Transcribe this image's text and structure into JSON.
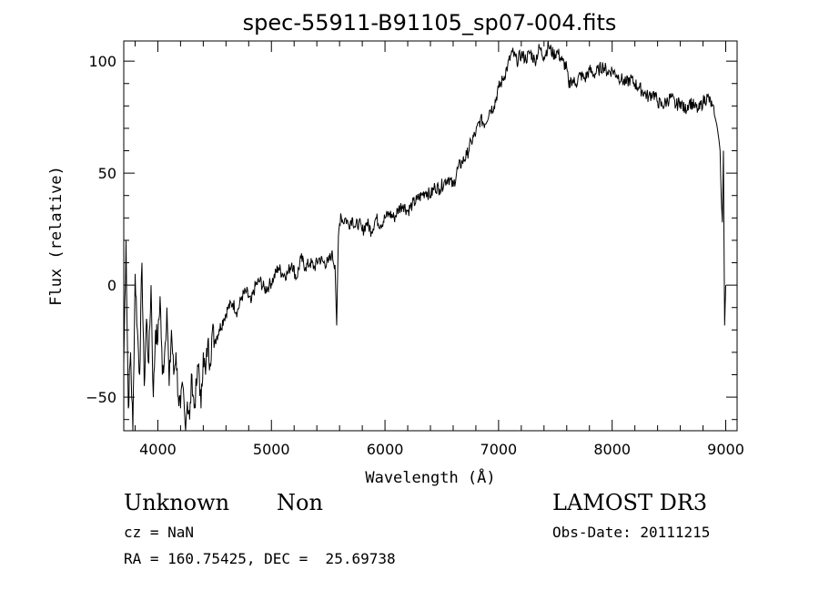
{
  "chart_data": {
    "type": "line",
    "title": "spec-55911-B91105_sp07-004.fits",
    "xlabel": "Wavelength (Å)",
    "ylabel": "Flux (relative)",
    "xlim": [
      3700,
      9100
    ],
    "ylim": [
      -65,
      109
    ],
    "xticks": [
      4000,
      5000,
      6000,
      7000,
      8000,
      9000
    ],
    "yticks": [
      -50,
      0,
      50,
      100
    ],
    "xtick_labels": [
      "4000",
      "5000",
      "6000",
      "7000",
      "8000",
      "9000"
    ],
    "ytick_labels": [
      "−50",
      "0",
      "50",
      "100"
    ],
    "grid": false,
    "series": [
      {
        "x": [
          3700,
          3720,
          3740,
          3760,
          3780,
          3800,
          3820,
          3840,
          3860,
          3880,
          3900,
          3920,
          3940,
          3960,
          3980,
          4000,
          4020,
          4040,
          4060,
          4080,
          4100,
          4120,
          4140,
          4160,
          4180,
          4200,
          4220,
          4240,
          4260,
          4280,
          4300,
          4320,
          4340,
          4360,
          4380,
          4400,
          4420,
          4440,
          4460,
          4480,
          4500,
          4540,
          4580,
          4620,
          4660,
          4700,
          4740,
          4780,
          4820,
          4860,
          4900,
          4940,
          4980,
          5020,
          5060,
          5100,
          5140,
          5180,
          5220,
          5260,
          5300,
          5340,
          5380,
          5420,
          5460,
          5500,
          5530,
          5560,
          5575,
          5590,
          5610,
          5630,
          5650,
          5680,
          5710,
          5740,
          5770,
          5800,
          5840,
          5880,
          5920,
          5960,
          6000,
          6040,
          6080,
          6120,
          6160,
          6200,
          6240,
          6280,
          6320,
          6360,
          6400,
          6440,
          6480,
          6520,
          6560,
          6600,
          6640,
          6680,
          6720,
          6760,
          6800,
          6840,
          6880,
          6920,
          6960,
          7000,
          7040,
          7080,
          7120,
          7160,
          7200,
          7240,
          7280,
          7320,
          7360,
          7400,
          7440,
          7480,
          7520,
          7560,
          7600,
          7620,
          7640,
          7680,
          7720,
          7760,
          7800,
          7840,
          7880,
          7920,
          7960,
          8000,
          8040,
          8080,
          8120,
          8160,
          8200,
          8240,
          8280,
          8320,
          8360,
          8400,
          8440,
          8480,
          8520,
          8560,
          8600,
          8640,
          8680,
          8720,
          8760,
          8800,
          8840,
          8880,
          8900,
          8920,
          8940,
          8950,
          8960,
          8970,
          8980,
          8990,
          9000
        ],
        "y": [
          -35,
          20,
          -55,
          -30,
          -65,
          5,
          -20,
          -40,
          10,
          -45,
          -15,
          -35,
          0,
          -50,
          -20,
          -25,
          -5,
          -40,
          -30,
          -10,
          -45,
          -20,
          -40,
          -30,
          -50,
          -55,
          -45,
          -62,
          -52,
          -60,
          -40,
          -55,
          -45,
          -35,
          -55,
          -30,
          -40,
          -25,
          -35,
          -20,
          -25,
          -20,
          -15,
          -10,
          -8,
          -12,
          -5,
          -3,
          -8,
          0,
          2,
          -2,
          0,
          3,
          8,
          5,
          5,
          10,
          3,
          12,
          8,
          10,
          8,
          12,
          10,
          10,
          14,
          9,
          -18,
          22,
          32,
          28,
          30,
          27,
          30,
          26,
          28,
          24,
          28,
          24,
          30,
          27,
          30,
          32,
          30,
          34,
          36,
          33,
          36,
          38,
          40,
          42,
          40,
          44,
          43,
          46,
          48,
          44,
          52,
          55,
          58,
          64,
          68,
          74,
          72,
          78,
          80,
          88,
          92,
          98,
          104,
          100,
          103,
          101,
          104,
          100,
          106,
          102,
          107,
          103,
          104,
          100,
          97,
          88,
          92,
          90,
          94,
          92,
          96,
          94,
          96,
          98,
          95,
          96,
          94,
          92,
          90,
          92,
          90,
          88,
          86,
          84,
          86,
          82,
          80,
          82,
          84,
          80,
          82,
          78,
          82,
          80,
          78,
          82,
          84,
          80,
          76,
          72,
          65,
          60,
          40,
          28,
          60,
          -18,
          0
        ]
      }
    ]
  },
  "info": {
    "object_class": "Unknown",
    "object_subclass": "Non",
    "survey": "LAMOST DR3",
    "redshift": "cz = NaN",
    "obs_date": "Obs-Date: 20111215",
    "coordinates": "RA = 160.75425, DEC =  25.69738"
  }
}
